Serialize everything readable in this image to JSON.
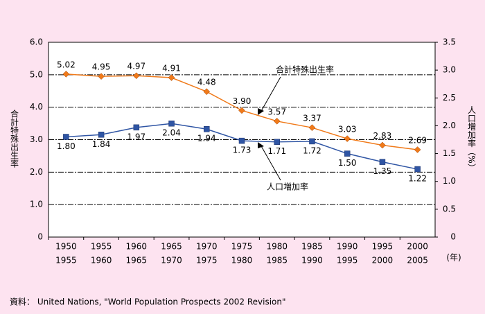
{
  "chart_data": {
    "type": "line",
    "y_label": "合計特殊出生率",
    "y2_label": "人口増加率（%）",
    "x_unit": "(年)",
    "source": "資料： United Nations, \"World Population Prospects 2002 Revision\"",
    "categories": [
      [
        "1950",
        "1955"
      ],
      [
        "1955",
        "1960"
      ],
      [
        "1960",
        "1965"
      ],
      [
        "1965",
        "1970"
      ],
      [
        "1970",
        "1975"
      ],
      [
        "1975",
        "1980"
      ],
      [
        "1980",
        "1985"
      ],
      [
        "1985",
        "1990"
      ],
      [
        "1990",
        "1995"
      ],
      [
        "1995",
        "2000"
      ],
      [
        "2000",
        "2005"
      ]
    ],
    "series": [
      {
        "name": "合計特殊出生率",
        "color": "#f07a1a",
        "marker": "diamond",
        "axis": "y",
        "values": [
          5.02,
          4.95,
          4.97,
          4.91,
          4.48,
          3.9,
          3.57,
          3.37,
          3.03,
          2.83,
          2.69
        ],
        "value_labels": [
          "5.02",
          "4.95",
          "4.97",
          "4.91",
          "4.48",
          "3.90",
          "3.57",
          "3.37",
          "3.03",
          "2.83",
          "2.69"
        ]
      },
      {
        "name": "人口増加率",
        "color": "#2f55a4",
        "marker": "square",
        "axis": "y2",
        "values": [
          1.8,
          1.84,
          1.97,
          2.04,
          1.94,
          1.73,
          1.71,
          1.72,
          1.5,
          1.35,
          1.22
        ],
        "value_labels": [
          "1.80",
          "1.84",
          "1.97",
          "2.04",
          "1.94",
          "1.73",
          "1.71",
          "1.72",
          "1.50",
          "1.35",
          "1.22"
        ]
      }
    ],
    "ylim": [
      0,
      6
    ],
    "yticks": [
      0,
      {
        "value": 1,
        "label": "1.0"
      },
      {
        "value": 2,
        "label": "2.0"
      },
      {
        "value": 3,
        "label": "3.0"
      },
      {
        "value": 4,
        "label": "4.0"
      },
      {
        "value": 5,
        "label": "5.0"
      },
      {
        "value": 6,
        "label": "6.0"
      }
    ],
    "y2lim": [
      0,
      3.5
    ],
    "y2ticks": [
      0,
      0.5,
      {
        "value": 1,
        "label": "1.0"
      },
      1.5,
      {
        "value": 2,
        "label": "2.0"
      },
      2.5,
      {
        "value": 3,
        "label": "3.0"
      },
      3.5
    ],
    "grid": true
  }
}
